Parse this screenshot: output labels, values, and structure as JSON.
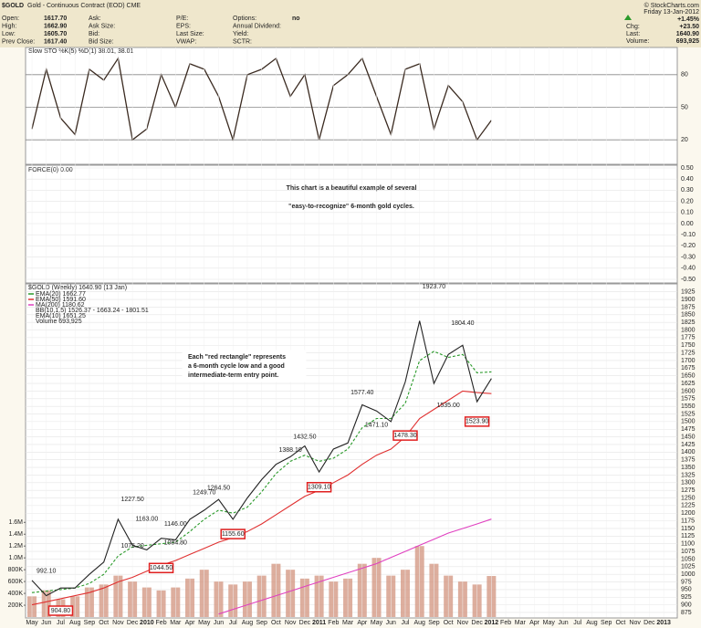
{
  "header": {
    "title": "$GOLD",
    "subtitle": "Gold - Continuous Contract (EOD) CME",
    "copyright": "© StockCharts.com",
    "quote": [
      [
        [
          "Open:",
          "1617.70"
        ],
        [
          "High:",
          "1662.90"
        ],
        [
          "Low:",
          "1605.70"
        ],
        [
          "Prev Close:",
          "1617.40"
        ]
      ],
      [
        [
          "Ask:",
          ""
        ],
        [
          "Ask Size:",
          ""
        ],
        [
          "Bid:",
          ""
        ],
        [
          "Bid Size:",
          ""
        ]
      ],
      [
        [
          "P/E:",
          ""
        ],
        [
          "EPS:",
          ""
        ],
        [
          "Last Size:",
          ""
        ],
        [
          "VWAP:",
          ""
        ]
      ],
      [
        [
          "Options:",
          "no"
        ],
        [
          "Annual Dividend:",
          ""
        ],
        [
          "Yield:",
          ""
        ],
        [
          "SCTR:",
          ""
        ]
      ]
    ],
    "date": "Friday 13-Jan-2012",
    "change_pct": "+1.45%",
    "right": [
      [
        "Chg:",
        "+23.50"
      ],
      [
        "Last:",
        "1640.90"
      ],
      [
        "Volume:",
        "693,925"
      ]
    ]
  },
  "chart_data": [
    {
      "type": "line",
      "title": "Slow STO %K(5) %D(1) 38.01, 38.01",
      "ylim": [
        0,
        100
      ],
      "yticks": [
        20,
        50,
        80
      ],
      "grid": true,
      "series": [
        {
          "name": "%K",
          "color": "#3a2a20",
          "values": [
            30,
            85,
            40,
            25,
            85,
            75,
            95,
            20,
            30,
            80,
            50,
            90,
            85,
            60,
            20,
            80,
            85,
            95,
            60,
            80,
            20,
            70,
            80,
            95,
            60,
            25,
            85,
            90,
            30,
            70,
            55,
            20,
            38.01,
            null,
            null,
            null,
            null,
            null,
            null,
            null,
            null,
            null,
            null,
            null,
            null
          ]
        }
      ]
    },
    {
      "type": "line",
      "title": "FORCE(0) 0.00",
      "ylim": [
        -0.5,
        0.5
      ],
      "yticks": [
        {
          "value": 0.5,
          "label": "0.50"
        },
        {
          "value": 0.4,
          "label": "0.40"
        },
        {
          "value": 0.3,
          "label": "0.30"
        },
        {
          "value": 0.2,
          "label": "0.20"
        },
        {
          "value": 0.1,
          "label": "0.10"
        },
        {
          "value": 0,
          "label": "0.00"
        },
        {
          "value": -0.1,
          "label": "-0.10"
        },
        {
          "value": -0.2,
          "label": "-0.20"
        },
        {
          "value": -0.3,
          "label": "-0.30"
        },
        {
          "value": -0.4,
          "label": "-0.40"
        },
        {
          "value": -0.5,
          "label": "-0.50"
        }
      ],
      "grid": true,
      "annotations": [
        "This chart is a beautiful example of several",
        "\"easy-to-recognize\" 6-month gold cycles."
      ]
    },
    {
      "type": "line",
      "title": "$GOLD (Weekly) 1640.90 (13 Jan)",
      "categories": [
        "May",
        "Jun",
        "Jul",
        "Aug",
        "Sep",
        "Oct",
        "Nov",
        "Dec",
        "2010",
        "Feb",
        "Mar",
        "Apr",
        "May",
        "Jun",
        "Jul",
        "Aug",
        "Sep",
        "Oct",
        "Nov",
        "Dec",
        "2011",
        "Feb",
        "Mar",
        "Apr",
        "May",
        "Jun",
        "Jul",
        "Aug",
        "Sep",
        "Oct",
        "Nov",
        "Dec",
        "2012",
        "Feb",
        "Mar",
        "Apr",
        "May",
        "Jun",
        "Jul",
        "Aug",
        "Sep",
        "Oct",
        "Nov",
        "Dec",
        "2013"
      ],
      "ylim": [
        860,
        1945
      ],
      "yticks": [
        875,
        900,
        925,
        950,
        975,
        1000,
        1025,
        1050,
        1075,
        1100,
        1125,
        1150,
        1175,
        1200,
        1225,
        1250,
        1275,
        1300,
        1325,
        1350,
        1375,
        1400,
        1425,
        1450,
        1475,
        1500,
        1525,
        1550,
        1575,
        1600,
        1625,
        1650,
        1675,
        1700,
        1725,
        1750,
        1775,
        1800,
        1825,
        1850,
        1875,
        1900,
        1925
      ],
      "y2lim": [
        0,
        5600000
      ],
      "y2ticks": [
        {
          "value": 200000,
          "label": "200K"
        },
        {
          "value": 400000,
          "label": "400K"
        },
        {
          "value": 600000,
          "label": "600K"
        },
        {
          "value": 800000,
          "label": "800K"
        },
        {
          "value": 1000000,
          "label": "1.0M"
        },
        {
          "value": 1200000,
          "label": "1.2M"
        },
        {
          "value": 1400000,
          "label": "1.4M"
        },
        {
          "value": 1600000,
          "label": "1.6M"
        }
      ],
      "grid": true,
      "series": [
        {
          "name": "Volume 693,925",
          "color": "#d49a86",
          "axis": "y2",
          "kind": "bar",
          "values": [
            350000,
            450000,
            300000,
            350000,
            500000,
            550000,
            700000,
            600000,
            500000,
            450000,
            500000,
            650000,
            800000,
            600000,
            550000,
            600000,
            700000,
            900000,
            800000,
            650000,
            700000,
            600000,
            650000,
            900000,
            1000000,
            700000,
            800000,
            1200000,
            900000,
            700000,
            600000,
            550000,
            693925,
            null,
            null,
            null,
            null,
            null,
            null,
            null,
            null,
            null,
            null,
            null,
            null
          ]
        },
        {
          "name": "MA(200) 1180.62",
          "color": "#e040c0",
          "values": [
            null,
            null,
            null,
            null,
            null,
            null,
            null,
            null,
            null,
            null,
            null,
            null,
            null,
            870,
            885,
            900,
            915,
            930,
            945,
            960,
            975,
            990,
            1005,
            1020,
            1035,
            1055,
            1075,
            1095,
            1115,
            1135,
            1150,
            1165,
            1180.62,
            null,
            null,
            null,
            null,
            null,
            null,
            null,
            null,
            null,
            null,
            null,
            null
          ]
        },
        {
          "name": "EMA(50) 1591.60",
          "color": "#e03030",
          "values": [
            900,
            910,
            920,
            930,
            940,
            955,
            975,
            990,
            1010,
            1030,
            1045,
            1065,
            1085,
            1105,
            1120,
            1140,
            1165,
            1195,
            1225,
            1255,
            1275,
            1300,
            1325,
            1360,
            1390,
            1410,
            1450,
            1510,
            1540,
            1570,
            1600,
            1595,
            1591.6,
            null,
            null,
            null,
            null,
            null,
            null,
            null,
            null,
            null,
            null,
            null,
            null
          ]
        },
        {
          "name": "EMA(20) 1662.77",
          "color": "#2a9a2a",
          "dash": true,
          "values": [
            940,
            945,
            950,
            955,
            970,
            1000,
            1060,
            1090,
            1095,
            1100,
            1105,
            1140,
            1180,
            1210,
            1200,
            1220,
            1270,
            1330,
            1370,
            1390,
            1370,
            1380,
            1410,
            1480,
            1510,
            1510,
            1560,
            1700,
            1730,
            1710,
            1720,
            1660,
            1662.77,
            null,
            null,
            null,
            null,
            null,
            null,
            null,
            null,
            null,
            null,
            null,
            null
          ]
        },
        {
          "name": "Close",
          "color": "#222222",
          "values": [
            980,
            930,
            955,
            955,
            1000,
            1040,
            1180,
            1095,
            1080,
            1118,
            1113,
            1180,
            1210,
            1245,
            1180,
            1250,
            1310,
            1360,
            1385,
            1420,
            1335,
            1410,
            1430,
            1555,
            1535,
            1500,
            1630,
            1830,
            1625,
            1720,
            1750,
            1565,
            1640.9,
            null,
            null,
            null,
            null,
            null,
            null,
            null,
            null,
            null,
            null,
            null,
            null
          ]
        }
      ],
      "legend_extra": [
        "BB(10,1.5) 1526.37 - 1663.24 - 1801.51",
        "EMA(10) 1651.25"
      ],
      "annotations": [
        {
          "label": "992.10",
          "value": 992.1,
          "at": 1
        },
        {
          "label": "904.80",
          "value": 904.8,
          "at": 2,
          "boxed": true
        },
        {
          "label": "1075.20",
          "value": 1075.2,
          "at": 7
        },
        {
          "label": "1227.50",
          "value": 1227.5,
          "at": 7
        },
        {
          "label": "1163.00",
          "value": 1163,
          "at": 8
        },
        {
          "label": "1044.50",
          "value": 1044.5,
          "at": 9,
          "boxed": true
        },
        {
          "label": "1084.80",
          "value": 1084.8,
          "at": 10
        },
        {
          "label": "1146.00",
          "value": 1146,
          "at": 10
        },
        {
          "label": "1249.70",
          "value": 1249.7,
          "at": 12
        },
        {
          "label": "1264.50",
          "value": 1264.5,
          "at": 13
        },
        {
          "label": "1155.60",
          "value": 1155.6,
          "at": 14,
          "boxed": true
        },
        {
          "label": "1388.10",
          "value": 1388.1,
          "at": 18
        },
        {
          "label": "1432.50",
          "value": 1432.5,
          "at": 19
        },
        {
          "label": "1309.10",
          "value": 1309.1,
          "at": 20,
          "boxed": true
        },
        {
          "label": "1577.40",
          "value": 1577.4,
          "at": 23
        },
        {
          "label": "1471.10",
          "value": 1471.1,
          "at": 24
        },
        {
          "label": "1478.30",
          "value": 1478.3,
          "at": 26,
          "boxed": true
        },
        {
          "label": "1923.70",
          "value": 1923.7,
          "at": 28
        },
        {
          "label": "1535.00",
          "value": 1535,
          "at": 29
        },
        {
          "label": "1804.40",
          "value": 1804.4,
          "at": 30
        },
        {
          "label": "1523.90",
          "value": 1523.9,
          "at": 31,
          "boxed": true
        }
      ],
      "note": [
        "Each \"red rectangle\" represents",
        "a 6-month cycle low and a good",
        "intermediate-term entry point."
      ]
    }
  ]
}
